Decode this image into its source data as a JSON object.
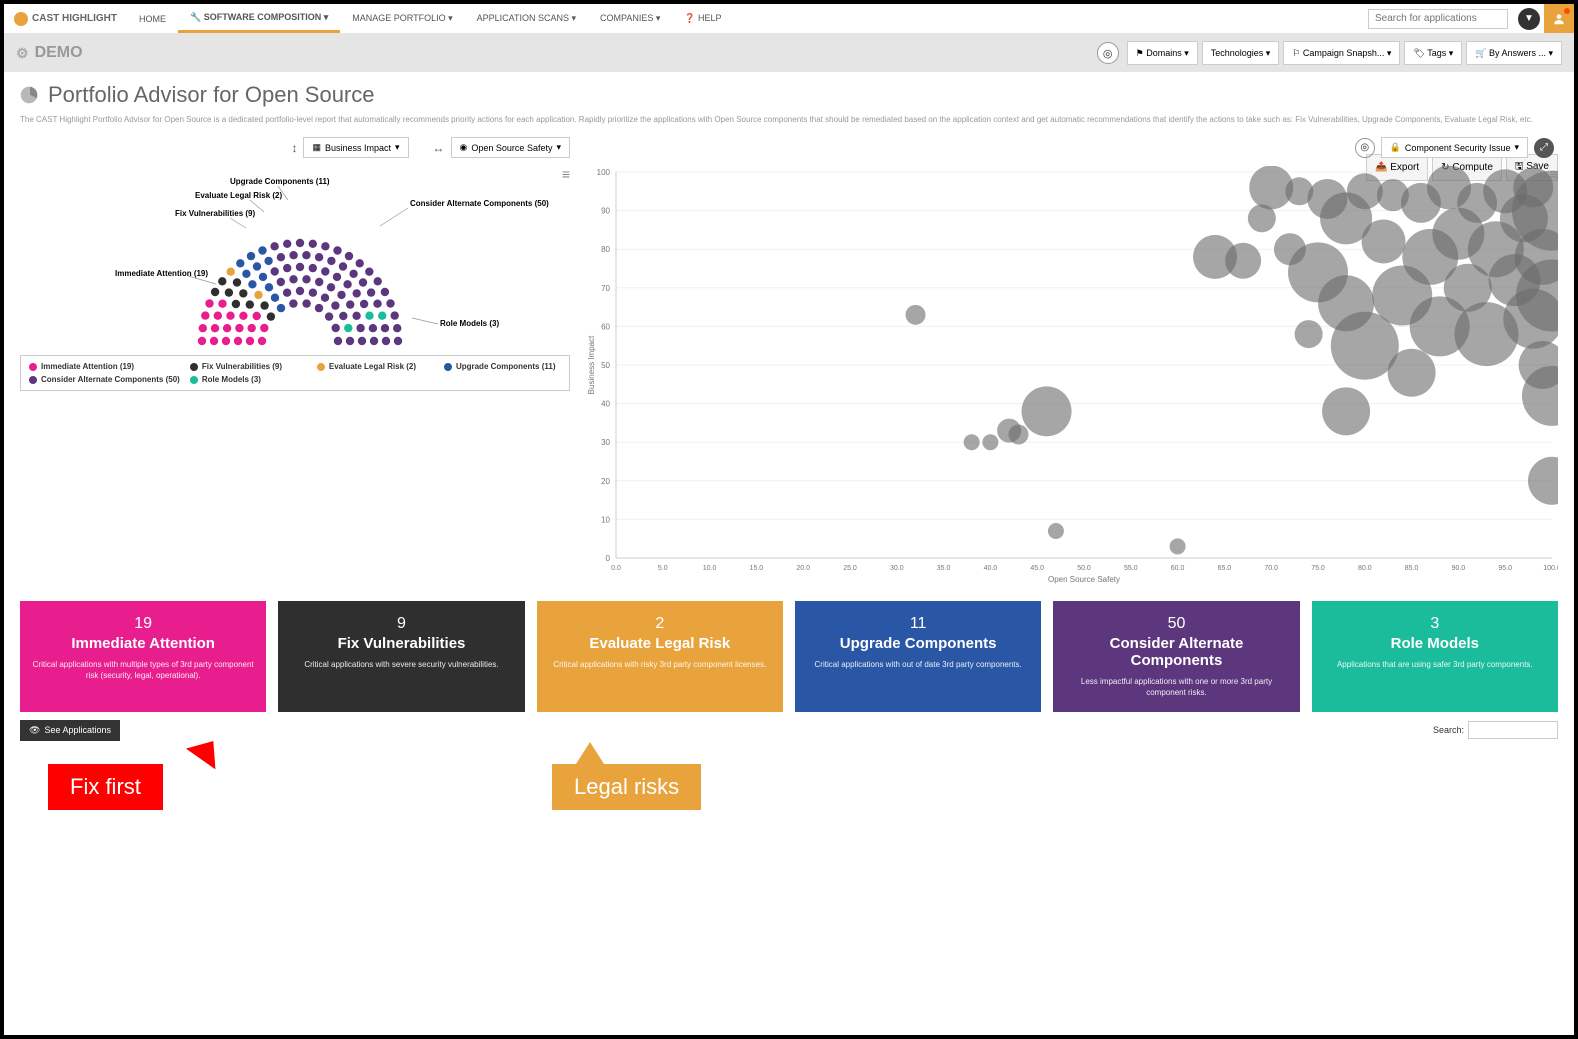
{
  "brand": "CAST HIGHLIGHT",
  "nav": {
    "items": [
      "HOME",
      "SOFTWARE COMPOSITION",
      "MANAGE PORTFOLIO",
      "APPLICATION SCANS",
      "COMPANIES",
      "HELP"
    ],
    "activeIndex": 1,
    "searchPlaceholder": "Search for applications"
  },
  "secbar": {
    "demo": "DEMO",
    "buttons": [
      "Domains",
      "Technologies",
      "Campaign Snapsh...",
      "Tags",
      "By Answers ..."
    ]
  },
  "page": {
    "title": "Portfolio Advisor for Open Source",
    "description": "The CAST Highlight Portfolio Advisor for Open Source is a dedicated portfolio-level report that automatically recommends priority actions for each application. Rapidly prioritize the applications with Open Source components that should be remediated based on the application context and get automatic recommendations that identify the actions to take such as: Fix Vulnerabilities, Upgrade Components, Evaluate Legal Risk, etc.",
    "actions": {
      "export": "Export",
      "compute": "Compute",
      "save": "Save"
    }
  },
  "axes": {
    "y": "Business Impact",
    "x": "Open Source Safety",
    "bubble": "Component Security Issue"
  },
  "categories": [
    {
      "key": "immediate",
      "label": "Immediate Attention",
      "count": 19,
      "color": "#e91e8e",
      "desc": "Critical applications with multiple types of 3rd party component risk (security, legal, operational)."
    },
    {
      "key": "fixvuln",
      "label": "Fix Vulnerabilities",
      "count": 9,
      "color": "#2f2f2f",
      "desc": "Critical applications with severe security vulnerabilities."
    },
    {
      "key": "legal",
      "label": "Evaluate Legal Risk",
      "count": 2,
      "color": "#e8a33d",
      "desc": "Critical applications with risky 3rd party component licenses."
    },
    {
      "key": "upgrade",
      "label": "Upgrade Components",
      "count": 11,
      "color": "#2956a5",
      "desc": "Critical applications with out of date 3rd party components."
    },
    {
      "key": "alternate",
      "label": "Consider Alternate Components",
      "count": 50,
      "color": "#5d377e",
      "desc": "Less impactful applications with one or more 3rd party component risks."
    },
    {
      "key": "rolemodels",
      "label": "Role Models",
      "count": 3,
      "color": "#1bbc9b",
      "desc": "Applications that are using safer 3rd party components."
    }
  ],
  "hemiLabels": {
    "upgrade": "Upgrade Components (11)",
    "legal": "Evaluate Legal Risk (2)",
    "fixvuln": "Fix Vulnerabilities (9)",
    "immediate": "Immediate Attention (19)",
    "alternate": "Consider Alternate Components (50)",
    "rolemodels": "Role Models (3)"
  },
  "scatter": {
    "xlabel": "Open Source Safety",
    "ylabel": "Business Impact",
    "xlim": [
      0,
      100
    ],
    "ylim": [
      0,
      100
    ],
    "xtick_step": 5,
    "ytick_step": 10,
    "bubble_color": "#6b6b6b",
    "bubble_opacity": 0.6,
    "grid_color": "#f0f0f0",
    "points": [
      {
        "x": 32,
        "y": 63,
        "r": 10
      },
      {
        "x": 38,
        "y": 30,
        "r": 8
      },
      {
        "x": 40,
        "y": 30,
        "r": 8
      },
      {
        "x": 42,
        "y": 33,
        "r": 12
      },
      {
        "x": 43,
        "y": 32,
        "r": 10
      },
      {
        "x": 46,
        "y": 38,
        "r": 25
      },
      {
        "x": 47,
        "y": 7,
        "r": 8
      },
      {
        "x": 60,
        "y": 3,
        "r": 8
      },
      {
        "x": 64,
        "y": 78,
        "r": 22
      },
      {
        "x": 67,
        "y": 77,
        "r": 18
      },
      {
        "x": 70,
        "y": 96,
        "r": 22
      },
      {
        "x": 69,
        "y": 88,
        "r": 14
      },
      {
        "x": 72,
        "y": 80,
        "r": 16
      },
      {
        "x": 73,
        "y": 95,
        "r": 14
      },
      {
        "x": 74,
        "y": 58,
        "r": 14
      },
      {
        "x": 75,
        "y": 74,
        "r": 30
      },
      {
        "x": 76,
        "y": 93,
        "r": 20
      },
      {
        "x": 78,
        "y": 88,
        "r": 26
      },
      {
        "x": 78,
        "y": 66,
        "r": 28
      },
      {
        "x": 78,
        "y": 38,
        "r": 24
      },
      {
        "x": 80,
        "y": 95,
        "r": 18
      },
      {
        "x": 80,
        "y": 55,
        "r": 34
      },
      {
        "x": 82,
        "y": 82,
        "r": 22
      },
      {
        "x": 83,
        "y": 94,
        "r": 16
      },
      {
        "x": 84,
        "y": 68,
        "r": 30
      },
      {
        "x": 85,
        "y": 48,
        "r": 24
      },
      {
        "x": 86,
        "y": 92,
        "r": 20
      },
      {
        "x": 87,
        "y": 78,
        "r": 28
      },
      {
        "x": 88,
        "y": 60,
        "r": 30
      },
      {
        "x": 89,
        "y": 96,
        "r": 22
      },
      {
        "x": 90,
        "y": 84,
        "r": 26
      },
      {
        "x": 91,
        "y": 70,
        "r": 24
      },
      {
        "x": 92,
        "y": 92,
        "r": 20
      },
      {
        "x": 93,
        "y": 58,
        "r": 32
      },
      {
        "x": 94,
        "y": 80,
        "r": 28
      },
      {
        "x": 95,
        "y": 95,
        "r": 22
      },
      {
        "x": 96,
        "y": 72,
        "r": 26
      },
      {
        "x": 97,
        "y": 88,
        "r": 24
      },
      {
        "x": 98,
        "y": 62,
        "r": 30
      },
      {
        "x": 98,
        "y": 96,
        "r": 20
      },
      {
        "x": 99,
        "y": 78,
        "r": 28
      },
      {
        "x": 99,
        "y": 50,
        "r": 24
      },
      {
        "x": 100,
        "y": 90,
        "r": 40
      },
      {
        "x": 100,
        "y": 68,
        "r": 36
      },
      {
        "x": 100,
        "y": 42,
        "r": 30
      },
      {
        "x": 100,
        "y": 20,
        "r": 24
      }
    ]
  },
  "below": {
    "seeApps": "See Applications",
    "searchLabel": "Search:"
  },
  "annotations": {
    "fixFirst": "Fix first",
    "legalRisks": "Legal risks"
  }
}
